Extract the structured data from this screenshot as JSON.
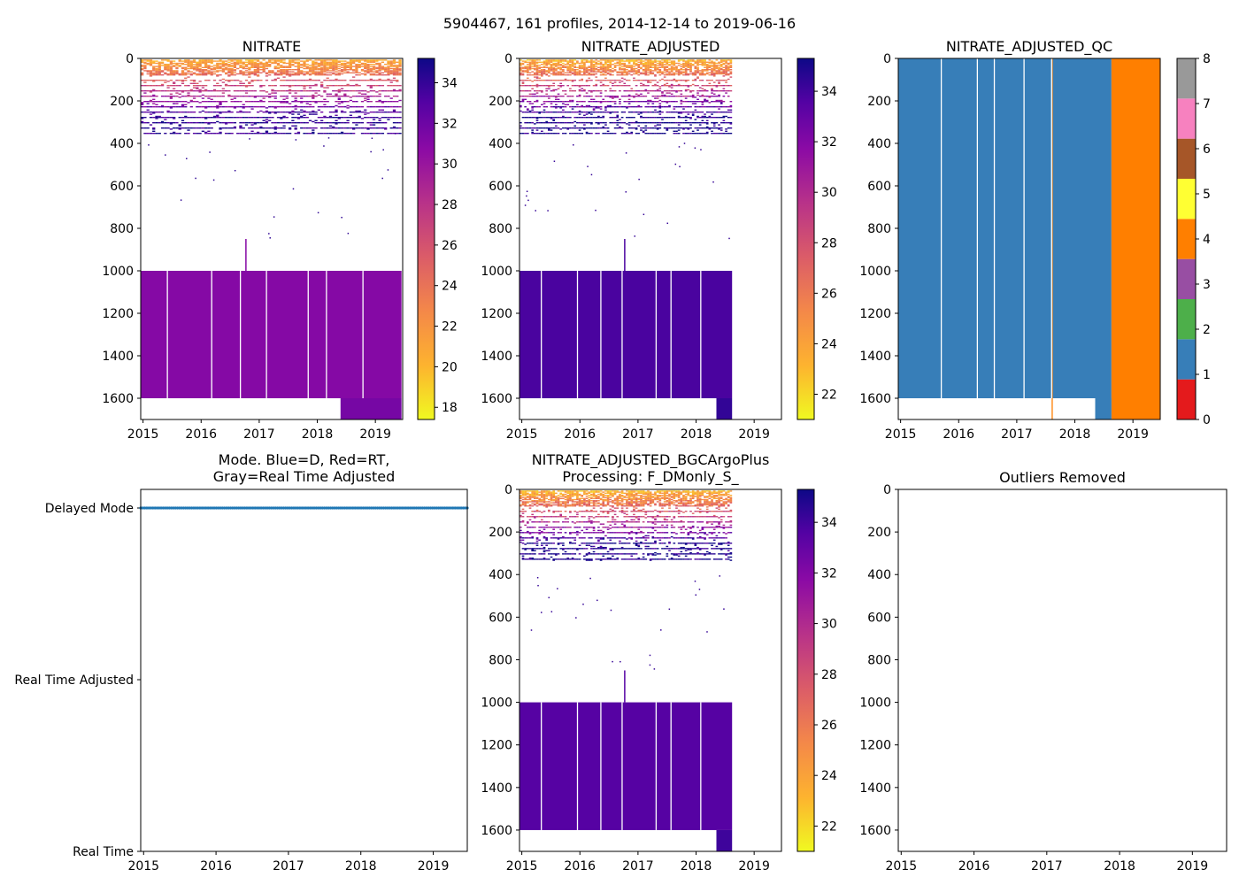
{
  "figure_title": "5904467, 161 profiles, 2014-12-14 to 2019-06-16",
  "colors": {
    "mode_delayed": "#1f77b4",
    "qc": [
      "#e41a1c",
      "#377eb8",
      "#4daf4a",
      "#984ea3",
      "#ff7f00",
      "#ffff33",
      "#a65628",
      "#f781bf",
      "#999999"
    ]
  },
  "chart_data": [
    {
      "id": "nitrate",
      "type": "heatmap",
      "title": "NITRATE",
      "xlim": [
        2014.96,
        2019.47
      ],
      "ylim": [
        1700,
        0
      ],
      "xticks": [
        "2015",
        "2016",
        "2017",
        "2018",
        "2019"
      ],
      "yticks": [
        "0",
        "200",
        "400",
        "600",
        "800",
        "1000",
        "1200",
        "1400",
        "1600"
      ],
      "colormap": "plasma_r",
      "clim": [
        17.4,
        35.2
      ],
      "colorbar_ticks": [
        "18",
        "20",
        "22",
        "24",
        "26",
        "28",
        "30",
        "32",
        "34"
      ],
      "deep_block": {
        "start": 2014.96,
        "end": 2019.45,
        "depth_top": 1000,
        "depth_bottom": 1600,
        "value": 31,
        "extended_to": 1700,
        "extended_from": 2018.4
      },
      "surface_layer": {
        "depth_top": 0,
        "depth_bottom": 350,
        "min_value": 18,
        "max_value": 34
      }
    },
    {
      "id": "nitrate_adjusted",
      "type": "heatmap",
      "title": "NITRATE_ADJUSTED",
      "xlim": [
        2014.96,
        2019.47
      ],
      "ylim": [
        1700,
        0
      ],
      "xticks": [
        "2015",
        "2016",
        "2017",
        "2018",
        "2019"
      ],
      "yticks": [
        "0",
        "200",
        "400",
        "600",
        "800",
        "1000",
        "1200",
        "1400",
        "1600"
      ],
      "colormap": "plasma_r",
      "clim": [
        21.0,
        35.3
      ],
      "colorbar_ticks": [
        "22",
        "24",
        "26",
        "28",
        "30",
        "32",
        "34"
      ],
      "deep_block": {
        "start": 2014.96,
        "end": 2018.62,
        "depth_top": 1000,
        "depth_bottom": 1600,
        "value": 33.8,
        "extended_to": 1700,
        "extended_from": 2018.35
      },
      "surface_layer": {
        "depth_top": 0,
        "depth_bottom": 350,
        "min_value": 21,
        "max_value": 35
      }
    },
    {
      "id": "nitrate_adjusted_qc",
      "type": "heatmap",
      "title": "NITRATE_ADJUSTED_QC",
      "xlim": [
        2014.96,
        2019.47
      ],
      "ylim": [
        1700,
        0
      ],
      "xticks": [
        "2015",
        "2016",
        "2017",
        "2018",
        "2019"
      ],
      "yticks": [
        "0",
        "200",
        "400",
        "600",
        "800",
        "1000",
        "1200",
        "1400",
        "1600"
      ],
      "categories": [
        "0",
        "1",
        "2",
        "3",
        "4",
        "5",
        "6",
        "7",
        "8"
      ],
      "flag_periods": [
        {
          "flag": 1,
          "start": 2014.96,
          "end": 2018.63
        },
        {
          "flag": 4,
          "start": 2018.63,
          "end": 2019.47
        },
        {
          "flag": 4,
          "start": 2017.6,
          "end": 2017.62
        }
      ],
      "colorbar_ticks": [
        "0",
        "1",
        "2",
        "3",
        "4",
        "5",
        "6",
        "7",
        "8"
      ]
    },
    {
      "id": "mode",
      "type": "scatter",
      "title_line1": "Mode. Blue=D, Red=RT,",
      "title_line2": "Gray=Real Time Adjusted",
      "xlim": [
        2014.96,
        2019.47
      ],
      "xticks": [
        "2015",
        "2016",
        "2017",
        "2018",
        "2019"
      ],
      "ycategories": [
        "Real Time",
        "Real Time Adjusted",
        "Delayed Mode"
      ],
      "series": [
        {
          "name": "Delayed Mode",
          "level": 2,
          "x_start": 2014.96,
          "x_end": 2019.47,
          "count": 161
        }
      ]
    },
    {
      "id": "bgcargoplus",
      "type": "heatmap",
      "title_line1": "NITRATE_ADJUSTED_BGCArgoPlus",
      "title_line2": "Processing: F_DMonly_S_",
      "xlim": [
        2014.96,
        2019.47
      ],
      "ylim": [
        1700,
        0
      ],
      "xticks": [
        "2015",
        "2016",
        "2017",
        "2018",
        "2019"
      ],
      "yticks": [
        "0",
        "200",
        "400",
        "600",
        "800",
        "1000",
        "1200",
        "1400",
        "1600"
      ],
      "colormap": "plasma_r",
      "clim": [
        21.0,
        35.3
      ],
      "colorbar_ticks": [
        "22",
        "24",
        "26",
        "28",
        "30",
        "32",
        "34"
      ],
      "deep_block": {
        "start": 2014.96,
        "end": 2018.62,
        "depth_top": 1000,
        "depth_bottom": 1600,
        "value": 33.5,
        "extended_to": 1700,
        "extended_from": 2018.35
      },
      "surface_layer": {
        "depth_top": 0,
        "depth_bottom": 330,
        "min_value": 21,
        "max_value": 35
      }
    },
    {
      "id": "outliers",
      "type": "scatter",
      "title": "Outliers Removed",
      "xlim": [
        2014.96,
        2019.47
      ],
      "ylim": [
        1700,
        0
      ],
      "xticks": [
        "2015",
        "2016",
        "2017",
        "2018",
        "2019"
      ],
      "yticks": [
        "0",
        "200",
        "400",
        "600",
        "800",
        "1000",
        "1200",
        "1400",
        "1600"
      ],
      "series": []
    }
  ]
}
